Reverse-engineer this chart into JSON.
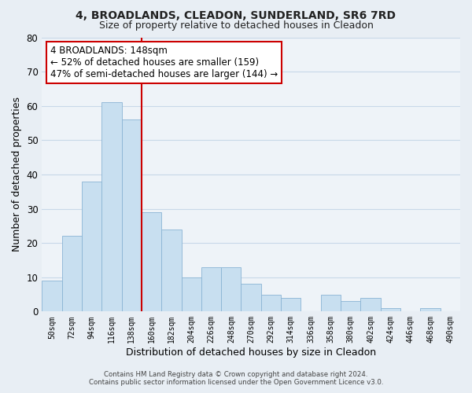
{
  "title": "4, BROADLANDS, CLEADON, SUNDERLAND, SR6 7RD",
  "subtitle": "Size of property relative to detached houses in Cleadon",
  "xlabel": "Distribution of detached houses by size in Cleadon",
  "ylabel": "Number of detached properties",
  "bar_labels": [
    "50sqm",
    "72sqm",
    "94sqm",
    "116sqm",
    "138sqm",
    "160sqm",
    "182sqm",
    "204sqm",
    "226sqm",
    "248sqm",
    "270sqm",
    "292sqm",
    "314sqm",
    "336sqm",
    "358sqm",
    "380sqm",
    "402sqm",
    "424sqm",
    "446sqm",
    "468sqm",
    "490sqm"
  ],
  "bar_values": [
    9,
    22,
    38,
    61,
    56,
    29,
    24,
    10,
    13,
    13,
    8,
    5,
    4,
    0,
    5,
    3,
    4,
    1,
    0,
    1,
    0
  ],
  "bar_color": "#c8dff0",
  "bar_edge_color": "#8ab4d4",
  "vline_color": "#cc0000",
  "ylim": [
    0,
    80
  ],
  "yticks": [
    0,
    10,
    20,
    30,
    40,
    50,
    60,
    70,
    80
  ],
  "annotation_title": "4 BROADLANDS: 148sqm",
  "annotation_line1": "← 52% of detached houses are smaller (159)",
  "annotation_line2": "47% of semi-detached houses are larger (144) →",
  "footer_line1": "Contains HM Land Registry data © Crown copyright and database right 2024.",
  "footer_line2": "Contains public sector information licensed under the Open Government Licence v3.0.",
  "bg_color": "#e8eef4",
  "plot_bg_color": "#eef3f8",
  "grid_color": "#c8d8e8",
  "title_fontsize": 10,
  "subtitle_fontsize": 9
}
